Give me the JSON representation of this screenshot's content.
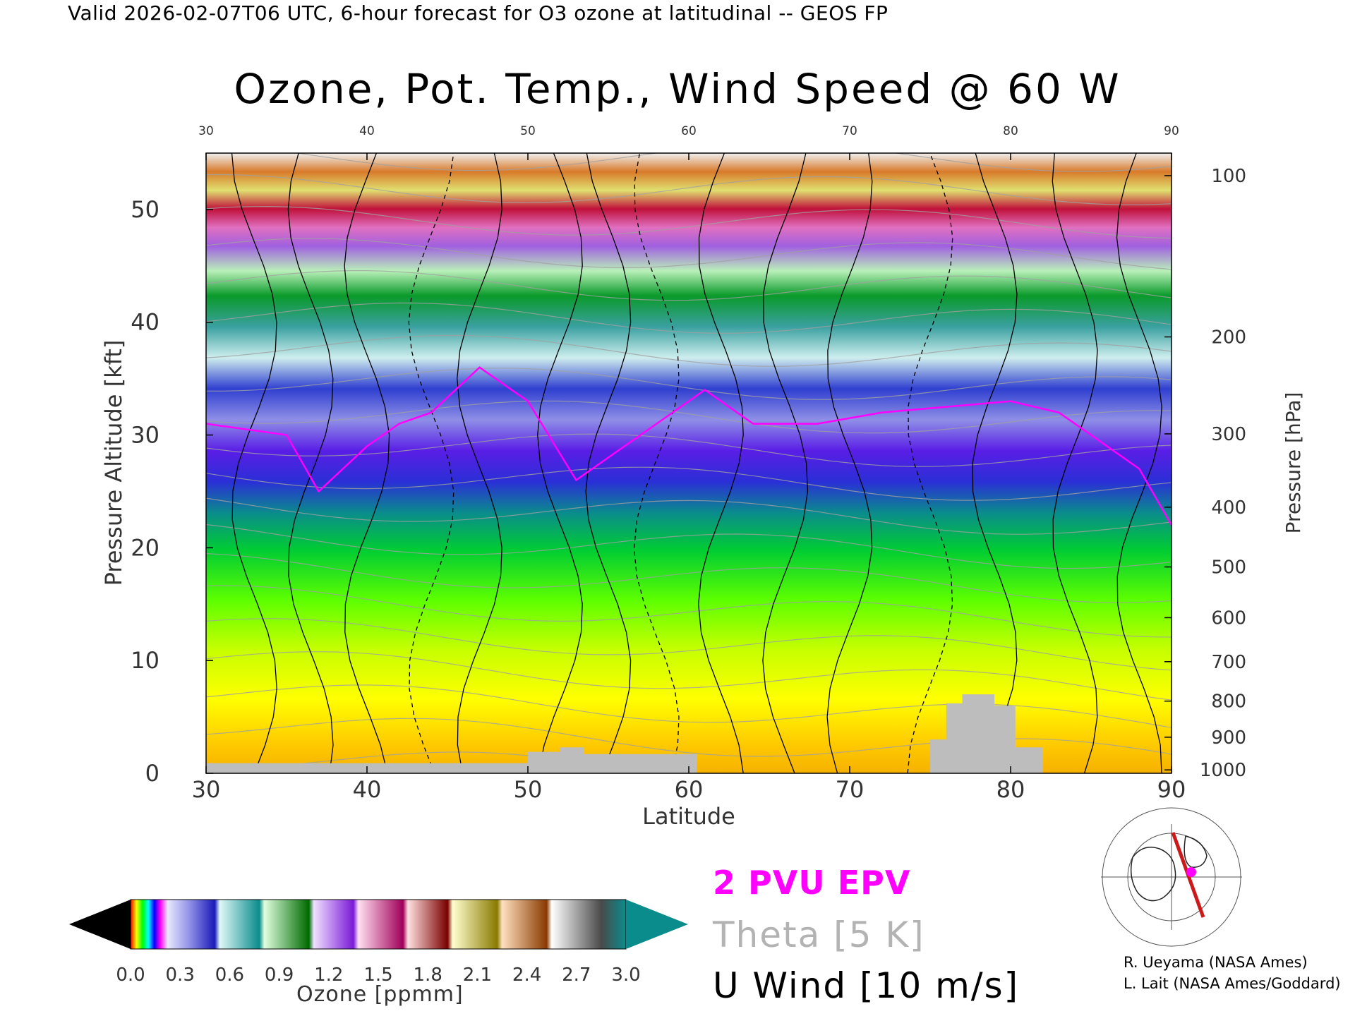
{
  "header": "Valid 2026-02-07T06 UTC, 6-hour forecast for O3 ozone at latitudinal -- GEOS FP",
  "colors": {
    "epv": "#ff00ff",
    "theta": "#a0a0a0",
    "uwind": "#000000",
    "terrain": "#bdbdbd",
    "map_track": "#cc1a1a",
    "map_marker": "#ff00ff"
  },
  "chart_data": {
    "type": "heatmap",
    "title": "Ozone, Pot. Temp., Wind Speed @ 60 W",
    "xlabel": "Latitude",
    "ylabel": "Pressure Altitude [kft]",
    "ylabel_right": "Pressure [hPa]",
    "xlim": [
      30,
      90
    ],
    "ylim": [
      0,
      55
    ],
    "x_ticks": [
      "30",
      "40",
      "50",
      "60",
      "70",
      "80",
      "90"
    ],
    "y_ticks": [
      "0",
      "10",
      "20",
      "30",
      "40",
      "50"
    ],
    "pressure_ticks": [
      {
        "label": "100",
        "kft": 53.0
      },
      {
        "label": "200",
        "kft": 38.7
      },
      {
        "label": "300",
        "kft": 30.1
      },
      {
        "label": "400",
        "kft": 23.6
      },
      {
        "label": "500",
        "kft": 18.3
      },
      {
        "label": "600",
        "kft": 13.8
      },
      {
        "label": "700",
        "kft": 9.9
      },
      {
        "label": "800",
        "kft": 6.4
      },
      {
        "label": "900",
        "kft": 3.2
      },
      {
        "label": "1000",
        "kft": 0.3
      }
    ],
    "tropopause_kft": [
      [
        30,
        31
      ],
      [
        35,
        30
      ],
      [
        37,
        25
      ],
      [
        40,
        29
      ],
      [
        42,
        31
      ],
      [
        44,
        32
      ],
      [
        47,
        36
      ],
      [
        50,
        33
      ],
      [
        53,
        26
      ],
      [
        56,
        29
      ],
      [
        58,
        31
      ],
      [
        61,
        34
      ],
      [
        64,
        31
      ],
      [
        68,
        31
      ],
      [
        72,
        32
      ],
      [
        76,
        32.5
      ],
      [
        80,
        33
      ],
      [
        83,
        32
      ],
      [
        86,
        29
      ],
      [
        88,
        27
      ],
      [
        90,
        22
      ]
    ],
    "terrain_kft": [
      [
        30,
        0.9
      ],
      [
        50,
        0.9
      ],
      [
        50,
        1.9
      ],
      [
        52,
        1.9
      ],
      [
        52,
        2.3
      ],
      [
        53.5,
        2.3
      ],
      [
        53.5,
        1.7
      ],
      [
        60.5,
        1.7
      ],
      [
        60.5,
        0
      ],
      [
        75,
        0
      ],
      [
        75,
        3
      ],
      [
        76,
        3
      ],
      [
        76,
        6.2
      ],
      [
        77,
        6.2
      ],
      [
        77,
        7
      ],
      [
        79,
        7
      ],
      [
        79,
        6
      ],
      [
        80.3,
        6
      ],
      [
        80.3,
        2.3
      ],
      [
        82,
        2.3
      ],
      [
        82,
        0
      ],
      [
        90,
        0
      ]
    ],
    "ozone_colorbar": {
      "label": "Ozone [ppmm]",
      "ticks": [
        "0.0",
        "0.3",
        "0.6",
        "0.9",
        "1.2",
        "1.5",
        "1.8",
        "2.1",
        "2.4",
        "2.7",
        "3.0"
      ],
      "under_color": "#000000",
      "over_color": "#0a8c8c"
    }
  },
  "legend": {
    "epv": "2 PVU EPV",
    "theta": "Theta [5 K]",
    "uwind": "U Wind [10 m/s]"
  },
  "credits": [
    "R. Ueyama (NASA Ames)",
    "L. Lait (NASA Ames/Goddard)"
  ]
}
